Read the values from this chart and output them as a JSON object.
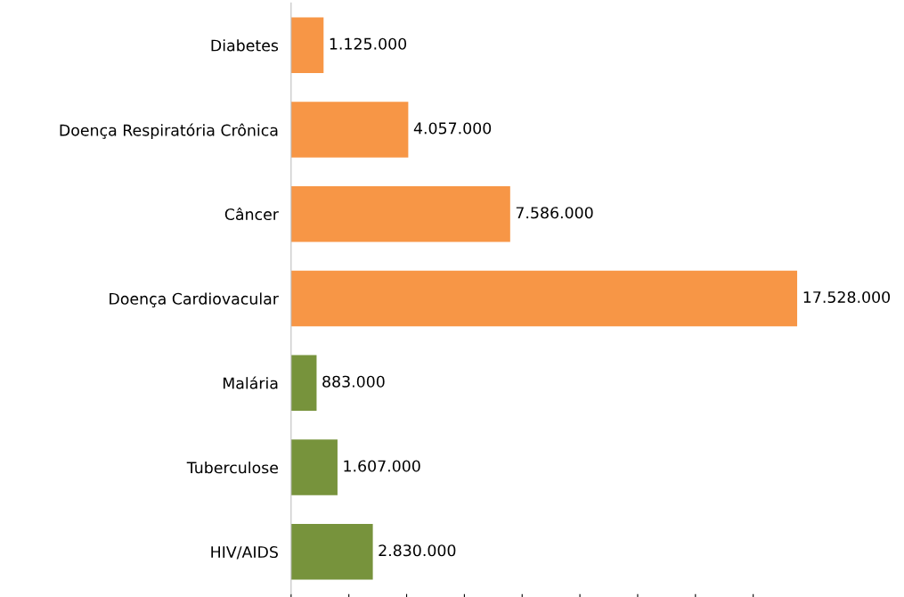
{
  "chart_data": {
    "type": "bar",
    "orientation": "horizontal",
    "relative": false,
    "categories": [
      "Diabetes",
      "Doença Respiratória Crônica",
      "Câncer",
      "Doença Cardiovacular",
      "Malária",
      "Tuberculose",
      "HIV/AIDS"
    ],
    "values": [
      1125000,
      4057000,
      7586000,
      17528000,
      883000,
      1607000,
      2830000
    ],
    "value_labels": [
      "1.125.000",
      "4.057.000",
      "7.586.000",
      "17.528.000",
      "883.000",
      "1.607.000",
      "2.830.000"
    ],
    "colors": [
      "#f79646",
      "#f79646",
      "#f79646",
      "#f79646",
      "#77933c",
      "#77933c",
      "#77933c"
    ],
    "grid": false,
    "legend": false
  }
}
